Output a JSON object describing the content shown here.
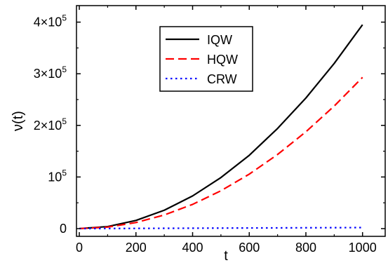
{
  "chart_data": {
    "type": "line",
    "title": "",
    "xlabel": "t",
    "ylabel": "ν(t)",
    "xlim": [
      -10,
      1080
    ],
    "ylim": [
      -15000,
      432000
    ],
    "x_ticks": [
      {
        "value": 0,
        "label": "0"
      },
      {
        "value": 200,
        "label": "200"
      },
      {
        "value": 400,
        "label": "400"
      },
      {
        "value": 600,
        "label": "600"
      },
      {
        "value": 800,
        "label": "800"
      },
      {
        "value": 1000,
        "label": "1000"
      }
    ],
    "y_ticks": [
      {
        "value": 0,
        "mantissa": "0",
        "exponent": ""
      },
      {
        "value": 100000,
        "mantissa": "10",
        "exponent": "5"
      },
      {
        "value": 200000,
        "mantissa": "2×10",
        "exponent": "5"
      },
      {
        "value": 300000,
        "mantissa": "3×10",
        "exponent": "5"
      },
      {
        "value": 400000,
        "mantissa": "4×10",
        "exponent": "5"
      }
    ],
    "grid": false,
    "legend_position": "top-center",
    "x": [
      0,
      100,
      200,
      300,
      400,
      500,
      600,
      700,
      800,
      900,
      1000
    ],
    "series": [
      {
        "name": "IQW",
        "color": "#000000",
        "dash": "solid",
        "values": [
          0,
          3950,
          15800,
          35600,
          63300,
          98900,
          142000,
          194000,
          253000,
          320000,
          395000
        ]
      },
      {
        "name": "HQW",
        "color": "#ff0000",
        "dash": "dashed",
        "values": [
          0,
          2930,
          11700,
          26400,
          46900,
          73300,
          105500,
          143600,
          187600,
          237400,
          293000
        ]
      },
      {
        "name": "CRW",
        "color": "#0000ff",
        "dash": "dotted",
        "values": [
          0,
          200,
          400,
          600,
          800,
          1000,
          1200,
          1400,
          1600,
          1800,
          2000
        ]
      }
    ]
  }
}
